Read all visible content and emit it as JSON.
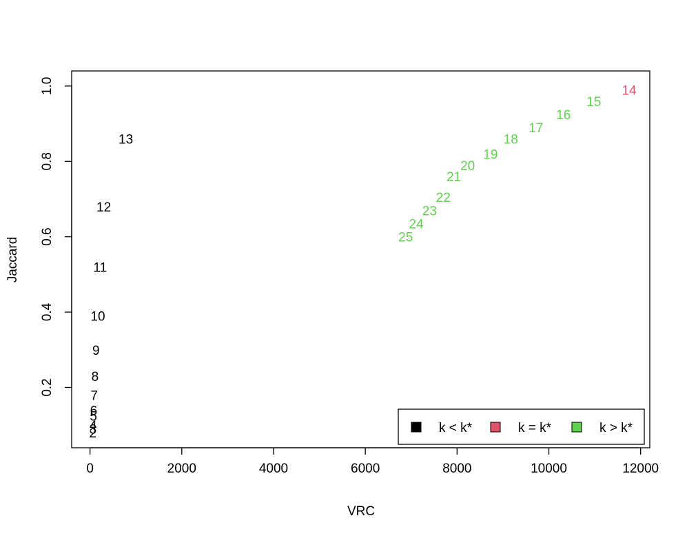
{
  "chart_data": {
    "type": "scatter",
    "title": "",
    "xlabel": "VRC",
    "ylabel": "Jaccard",
    "xlim": [
      -400,
      12200
    ],
    "ylim": [
      0.04,
      1.04
    ],
    "xticks": [
      0,
      2000,
      4000,
      6000,
      8000,
      10000,
      12000
    ],
    "xtick_labels": [
      "0",
      "2000",
      "4000",
      "6000",
      "8000",
      "10000",
      "12000"
    ],
    "yticks": [
      0.2,
      0.4,
      0.6,
      0.8,
      1.0
    ],
    "ytick_labels": [
      "0.2",
      "0.4",
      "0.6",
      "0.8",
      "1.0"
    ],
    "grid": false,
    "legend_position": "bottom-right",
    "series": [
      {
        "name": "k < k*",
        "color": "#000000",
        "points": [
          {
            "label": "2",
            "x": 60,
            "y": 0.08
          },
          {
            "label": "3",
            "x": 65,
            "y": 0.09
          },
          {
            "label": "4",
            "x": 70,
            "y": 0.1
          },
          {
            "label": "5",
            "x": 75,
            "y": 0.125
          },
          {
            "label": "6",
            "x": 80,
            "y": 0.14
          },
          {
            "label": "7",
            "x": 90,
            "y": 0.18
          },
          {
            "label": "8",
            "x": 110,
            "y": 0.23
          },
          {
            "label": "9",
            "x": 130,
            "y": 0.3
          },
          {
            "label": "10",
            "x": 170,
            "y": 0.39
          },
          {
            "label": "11",
            "x": 220,
            "y": 0.52
          },
          {
            "label": "12",
            "x": 300,
            "y": 0.68
          },
          {
            "label": "13",
            "x": 780,
            "y": 0.86
          }
        ]
      },
      {
        "name": "k = k*",
        "color": "#DF536B",
        "points": [
          {
            "label": "14",
            "x": 11750,
            "y": 0.99
          }
        ]
      },
      {
        "name": "k > k*",
        "color": "#61D04F",
        "points": [
          {
            "label": "15",
            "x": 10980,
            "y": 0.96
          },
          {
            "label": "16",
            "x": 10320,
            "y": 0.925
          },
          {
            "label": "17",
            "x": 9720,
            "y": 0.89
          },
          {
            "label": "18",
            "x": 9170,
            "y": 0.86
          },
          {
            "label": "19",
            "x": 8730,
            "y": 0.82
          },
          {
            "label": "20",
            "x": 8230,
            "y": 0.79
          },
          {
            "label": "21",
            "x": 7930,
            "y": 0.76
          },
          {
            "label": "22",
            "x": 7700,
            "y": 0.705
          },
          {
            "label": "23",
            "x": 7400,
            "y": 0.67
          },
          {
            "label": "24",
            "x": 7110,
            "y": 0.635
          },
          {
            "label": "25",
            "x": 6880,
            "y": 0.6
          }
        ]
      }
    ]
  }
}
